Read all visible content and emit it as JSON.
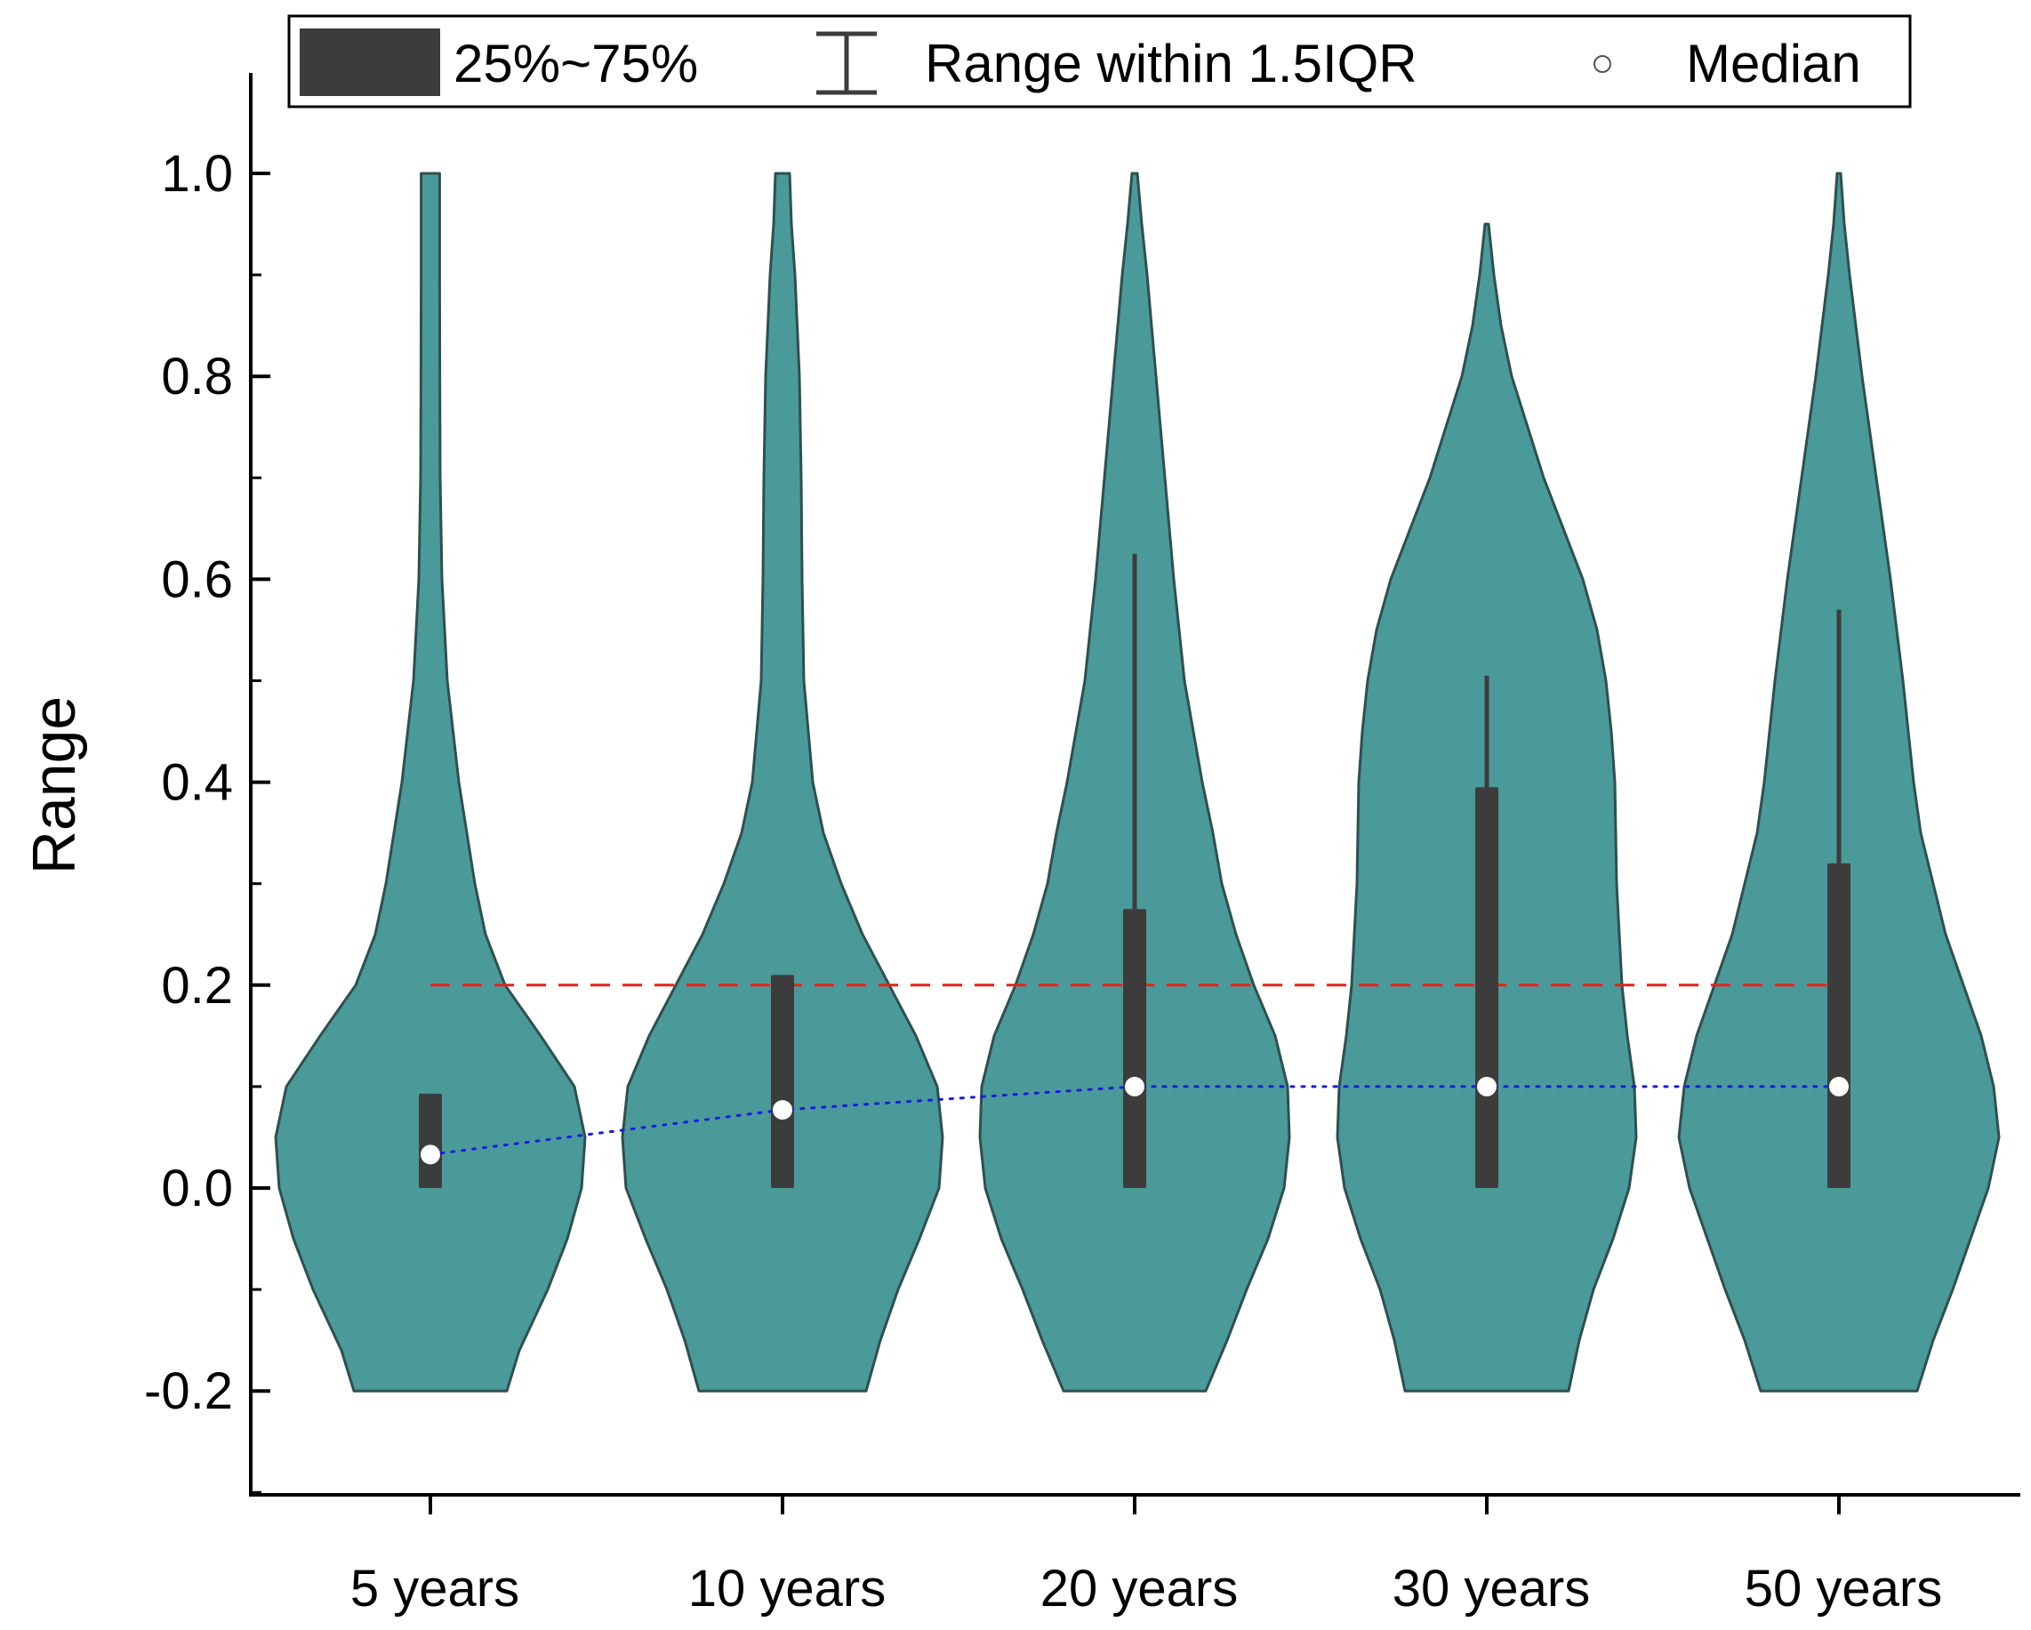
{
  "chart_data": {
    "type": "violin",
    "ylabel": "Range",
    "xlabel": "",
    "ylim": [
      -0.3,
      1.1
    ],
    "yticks": [
      {
        "value": 1.0,
        "label": "1.0"
      },
      {
        "value": 0.8,
        "label": "0.8"
      },
      {
        "value": 0.6,
        "label": "0.6"
      },
      {
        "value": 0.4,
        "label": "0.4"
      },
      {
        "value": 0.2,
        "label": "0.2"
      },
      {
        "value": 0.0,
        "label": "0.0"
      },
      {
        "value": -0.2,
        "label": "-0.2"
      }
    ],
    "categories": [
      "5 years",
      "10 years",
      "20 years",
      "30 years",
      "50 years"
    ],
    "legend": {
      "placement": "top",
      "box_label": "25%~75%",
      "whisker_label": "Range within 1.5IQR",
      "median_label": "Median"
    },
    "series": [
      {
        "name": "5 years",
        "q1": 0.0,
        "q3": 0.093,
        "median": 0.033,
        "whisker_low": 0.0,
        "whisker_high": 0.093,
        "violin_profile": [
          [
            -0.2,
            0.43
          ],
          [
            -0.16,
            0.5
          ],
          [
            -0.1,
            0.66
          ],
          [
            -0.05,
            0.77
          ],
          [
            0.0,
            0.85
          ],
          [
            0.05,
            0.87
          ],
          [
            0.1,
            0.81
          ],
          [
            0.15,
            0.62
          ],
          [
            0.2,
            0.42
          ],
          [
            0.25,
            0.31
          ],
          [
            0.3,
            0.25
          ],
          [
            0.4,
            0.16
          ],
          [
            0.5,
            0.095
          ],
          [
            0.6,
            0.065
          ],
          [
            0.7,
            0.055
          ],
          [
            0.8,
            0.053
          ],
          [
            0.9,
            0.052
          ],
          [
            1.0,
            0.052
          ]
        ]
      },
      {
        "name": "10 years",
        "q1": 0.0,
        "q3": 0.21,
        "median": 0.077,
        "whisker_low": 0.0,
        "whisker_high": 0.21,
        "violin_profile": [
          [
            -0.2,
            0.47
          ],
          [
            -0.15,
            0.55
          ],
          [
            -0.1,
            0.65
          ],
          [
            -0.05,
            0.77
          ],
          [
            0.0,
            0.88
          ],
          [
            0.05,
            0.9
          ],
          [
            0.1,
            0.87
          ],
          [
            0.15,
            0.75
          ],
          [
            0.2,
            0.6
          ],
          [
            0.25,
            0.45
          ],
          [
            0.3,
            0.33
          ],
          [
            0.35,
            0.23
          ],
          [
            0.4,
            0.17
          ],
          [
            0.5,
            0.12
          ],
          [
            0.6,
            0.11
          ],
          [
            0.7,
            0.105
          ],
          [
            0.8,
            0.095
          ],
          [
            0.9,
            0.07
          ],
          [
            0.95,
            0.05
          ],
          [
            1.0,
            0.04
          ]
        ]
      },
      {
        "name": "20 years",
        "q1": 0.0,
        "q3": 0.275,
        "median": 0.1,
        "whisker_low": 0.0,
        "whisker_high": 0.625,
        "violin_profile": [
          [
            -0.2,
            0.4
          ],
          [
            -0.15,
            0.52
          ],
          [
            -0.1,
            0.63
          ],
          [
            -0.05,
            0.75
          ],
          [
            0.0,
            0.84
          ],
          [
            0.05,
            0.87
          ],
          [
            0.1,
            0.86
          ],
          [
            0.15,
            0.79
          ],
          [
            0.2,
            0.67
          ],
          [
            0.25,
            0.57
          ],
          [
            0.3,
            0.49
          ],
          [
            0.35,
            0.44
          ],
          [
            0.4,
            0.38
          ],
          [
            0.5,
            0.28
          ],
          [
            0.6,
            0.22
          ],
          [
            0.7,
            0.17
          ],
          [
            0.8,
            0.12
          ],
          [
            0.9,
            0.07
          ],
          [
            0.95,
            0.04
          ],
          [
            1.0,
            0.015
          ]
        ]
      },
      {
        "name": "30 years",
        "q1": 0.0,
        "q3": 0.395,
        "median": 0.1,
        "whisker_low": 0.0,
        "whisker_high": 0.505,
        "violin_profile": [
          [
            -0.2,
            0.46
          ],
          [
            -0.15,
            0.52
          ],
          [
            -0.1,
            0.6
          ],
          [
            -0.05,
            0.71
          ],
          [
            0.0,
            0.8
          ],
          [
            0.05,
            0.84
          ],
          [
            0.1,
            0.83
          ],
          [
            0.15,
            0.79
          ],
          [
            0.2,
            0.76
          ],
          [
            0.3,
            0.73
          ],
          [
            0.4,
            0.72
          ],
          [
            0.45,
            0.7
          ],
          [
            0.5,
            0.67
          ],
          [
            0.55,
            0.62
          ],
          [
            0.6,
            0.54
          ],
          [
            0.7,
            0.32
          ],
          [
            0.8,
            0.14
          ],
          [
            0.85,
            0.08
          ],
          [
            0.9,
            0.04
          ],
          [
            0.95,
            0.01
          ]
        ]
      },
      {
        "name": "50 years",
        "q1": 0.0,
        "q3": 0.32,
        "median": 0.1,
        "whisker_low": 0.0,
        "whisker_high": 0.57,
        "violin_profile": [
          [
            -0.2,
            0.44
          ],
          [
            -0.15,
            0.53
          ],
          [
            -0.1,
            0.64
          ],
          [
            -0.05,
            0.74
          ],
          [
            0.0,
            0.84
          ],
          [
            0.05,
            0.9
          ],
          [
            0.1,
            0.87
          ],
          [
            0.15,
            0.8
          ],
          [
            0.2,
            0.7
          ],
          [
            0.25,
            0.6
          ],
          [
            0.3,
            0.53
          ],
          [
            0.35,
            0.46
          ],
          [
            0.4,
            0.42
          ],
          [
            0.5,
            0.36
          ],
          [
            0.6,
            0.29
          ],
          [
            0.7,
            0.21
          ],
          [
            0.8,
            0.13
          ],
          [
            0.9,
            0.06
          ],
          [
            0.95,
            0.03
          ],
          [
            1.0,
            0.01
          ]
        ]
      }
    ],
    "reference_line": {
      "value": 0.2,
      "style": "dashed",
      "color": "#e8201c"
    },
    "median_trend": {
      "style": "dotted",
      "color": "#1a1ae0"
    },
    "colors": {
      "violin_fill": "#4a9a9a",
      "violin_edge": "#2f4f4f",
      "box_fill": "#3c3c3c",
      "median_marker": "#ffffff",
      "axis": "#000000"
    }
  }
}
